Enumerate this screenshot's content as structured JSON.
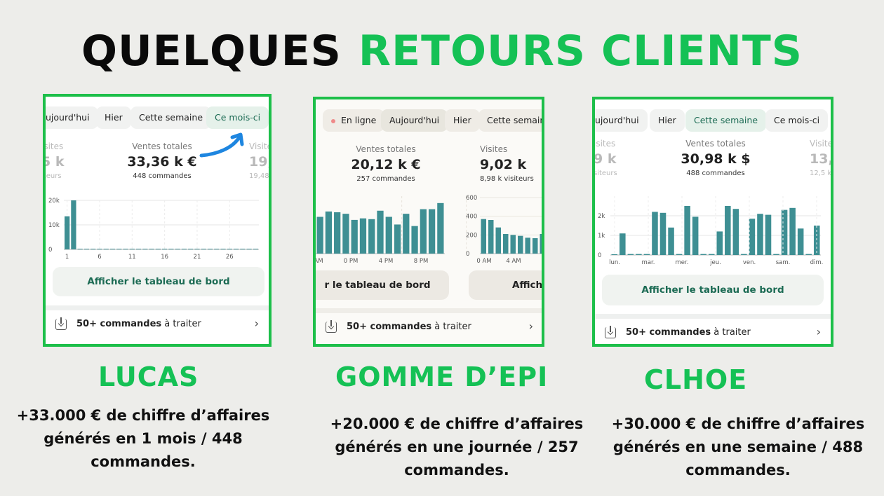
{
  "title": {
    "part1": "QUELQUES",
    "part2": "RETOURS CLIENTS"
  },
  "colors": {
    "accent_green": "#15c155",
    "bar_teal": "#3e8f93",
    "button_text": "#1c6b54"
  },
  "cards": [
    {
      "tabs": [
        "ujourd'hui",
        "Hier",
        "Cette semaine",
        "Ce mois-ci"
      ],
      "active_tab": "Ce mois-ci",
      "metrics": [
        {
          "label": "isites",
          "value": "5 k",
          "sub": "iteurs",
          "faded": true
        },
        {
          "label": "Ventes totales",
          "value": "33,36 k €",
          "sub": "448 commandes",
          "faded": false
        },
        {
          "label": "Visite",
          "value": "19,",
          "sub": "19,48",
          "faded": true
        }
      ],
      "chart_data": {
        "type": "bar",
        "x_ticks": [
          "1",
          "6",
          "11",
          "16",
          "21",
          "26"
        ],
        "y_ticks": [
          "0",
          "10k",
          "20k"
        ],
        "ylim": [
          0,
          20000
        ],
        "values": [
          13500,
          20000,
          0,
          0,
          0,
          0,
          0,
          0,
          0,
          0,
          0,
          0,
          0,
          0,
          0,
          0,
          0,
          0,
          0,
          0,
          0,
          0,
          0,
          0,
          0,
          0,
          0,
          0,
          0,
          0
        ]
      },
      "button": "Afficher le tableau de bord",
      "orders_bold": "50+ commandes",
      "orders_rest": "à traiter",
      "annotation": "blue-arrow-icon"
    },
    {
      "tabs": [
        "En ligne",
        "Aujourd'hui",
        "Hier",
        "Cette semaine"
      ],
      "active_tab": "Aujourd'hui",
      "metrics": [
        {
          "label": "Ventes totales",
          "value": "20,12 k €",
          "sub": "257 commandes",
          "faded": false
        },
        {
          "label": "Visites",
          "value": "9,02 k",
          "sub": "8,98 k visiteurs",
          "faded": false
        }
      ],
      "chart_data": {
        "type": "bar",
        "x_ticks": [
          "AM",
          "0 PM",
          "4 PM",
          "8 PM"
        ],
        "values": [
          48,
          55,
          54,
          52,
          44,
          46,
          45,
          56,
          48,
          38,
          52,
          36,
          58,
          58,
          66
        ]
      },
      "chart_data_2": {
        "type": "bar",
        "x_ticks": [
          "0 AM",
          "4 AM"
        ],
        "y_ticks": [
          "0",
          "200",
          "400",
          "600"
        ],
        "ylim": [
          0,
          600
        ],
        "values": [
          370,
          360,
          280,
          210,
          200,
          190,
          170,
          165,
          210
        ]
      },
      "button": "r le tableau de bord",
      "button_2": "Affich",
      "orders_bold": "50+ commandes",
      "orders_rest": "à traiter"
    },
    {
      "tabs": [
        "ujourd'hui",
        "Hier",
        "Cette semaine",
        "Ce mois-ci"
      ],
      "active_tab": "Cette semaine",
      "metrics": [
        {
          "label": "isites",
          "value": "9 k",
          "sub": "siteurs",
          "faded": true
        },
        {
          "label": "Ventes totales",
          "value": "30,98 k $",
          "sub": "488 commandes",
          "faded": false
        },
        {
          "label": "Visite",
          "value": "13,",
          "sub": "12,5 k",
          "faded": true
        }
      ],
      "chart_data": {
        "type": "bar",
        "x_ticks": [
          "lun.",
          "mar.",
          "mer.",
          "jeu.",
          "ven.",
          "sam.",
          "dim."
        ],
        "y_ticks": [
          "0",
          "1k",
          "2k"
        ],
        "ylim": [
          0,
          3000
        ],
        "values": [
          40,
          1100,
          50,
          50,
          50,
          2200,
          2150,
          1400,
          50,
          2500,
          1950,
          50,
          50,
          1200,
          2500,
          2350,
          50,
          1850,
          2100,
          2050,
          50,
          2300,
          2400,
          1350,
          50,
          1500
        ]
      },
      "button": "Afficher le tableau de bord",
      "orders_bold": "50+ commandes",
      "orders_rest": "à traiter"
    }
  ],
  "clients": [
    {
      "name": "LUCAS",
      "line1": "+33.000 € de chiffre d’affaires",
      "line2": "générés en 1 mois / 448",
      "line3": "commandes."
    },
    {
      "name": "GOMME D’EPI",
      "line1": "+20.000 € de chiffre d’affaires",
      "line2": "générés en une journée / 257",
      "line3": "commandes."
    },
    {
      "name": "CLHOE",
      "line1": "+30.000 € de chiffre d’affaires",
      "line2": "générés en une semaine / 488",
      "line3": "commandes."
    }
  ]
}
